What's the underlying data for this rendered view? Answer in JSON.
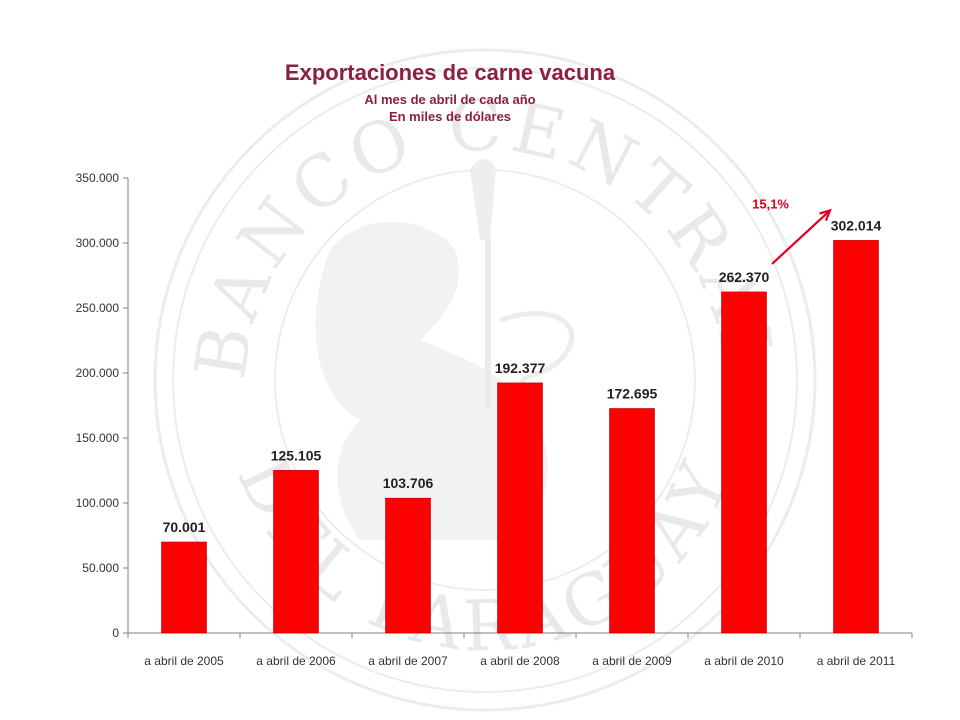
{
  "chart_data": {
    "type": "bar",
    "title": "Exportaciones de carne vacuna",
    "subtitle": [
      "Al mes de abril de cada año",
      "En miles de dólares"
    ],
    "categories": [
      "a abril de 2005",
      "a abril de 2006",
      "a abril de 2007",
      "a abril de 2008",
      "a abril de 2009",
      "a abril de 2010",
      "a abril de 2011"
    ],
    "values": [
      70001,
      125105,
      103706,
      192377,
      172695,
      262370,
      302014
    ],
    "value_labels": [
      "70.001",
      "125.105",
      "103.706",
      "192.377",
      "172.695",
      "262.370",
      "302.014"
    ],
    "yticks": [
      0,
      50000,
      100000,
      150000,
      200000,
      250000,
      300000,
      350000
    ],
    "ytick_labels": [
      "0",
      "50.000",
      "100.000",
      "150.000",
      "200.000",
      "250.000",
      "300.000",
      "350.000"
    ],
    "ylim": [
      0,
      350000
    ],
    "xlabel": "",
    "ylabel": "",
    "bar_color": "#ff0000",
    "annotation": {
      "text": "15,1%",
      "color": "#e0001b"
    },
    "grid": false,
    "legend": "none"
  },
  "watermark": {
    "text_top": "BANCO CENTRAL",
    "text_bottom": "DEL PARAGUAY"
  }
}
